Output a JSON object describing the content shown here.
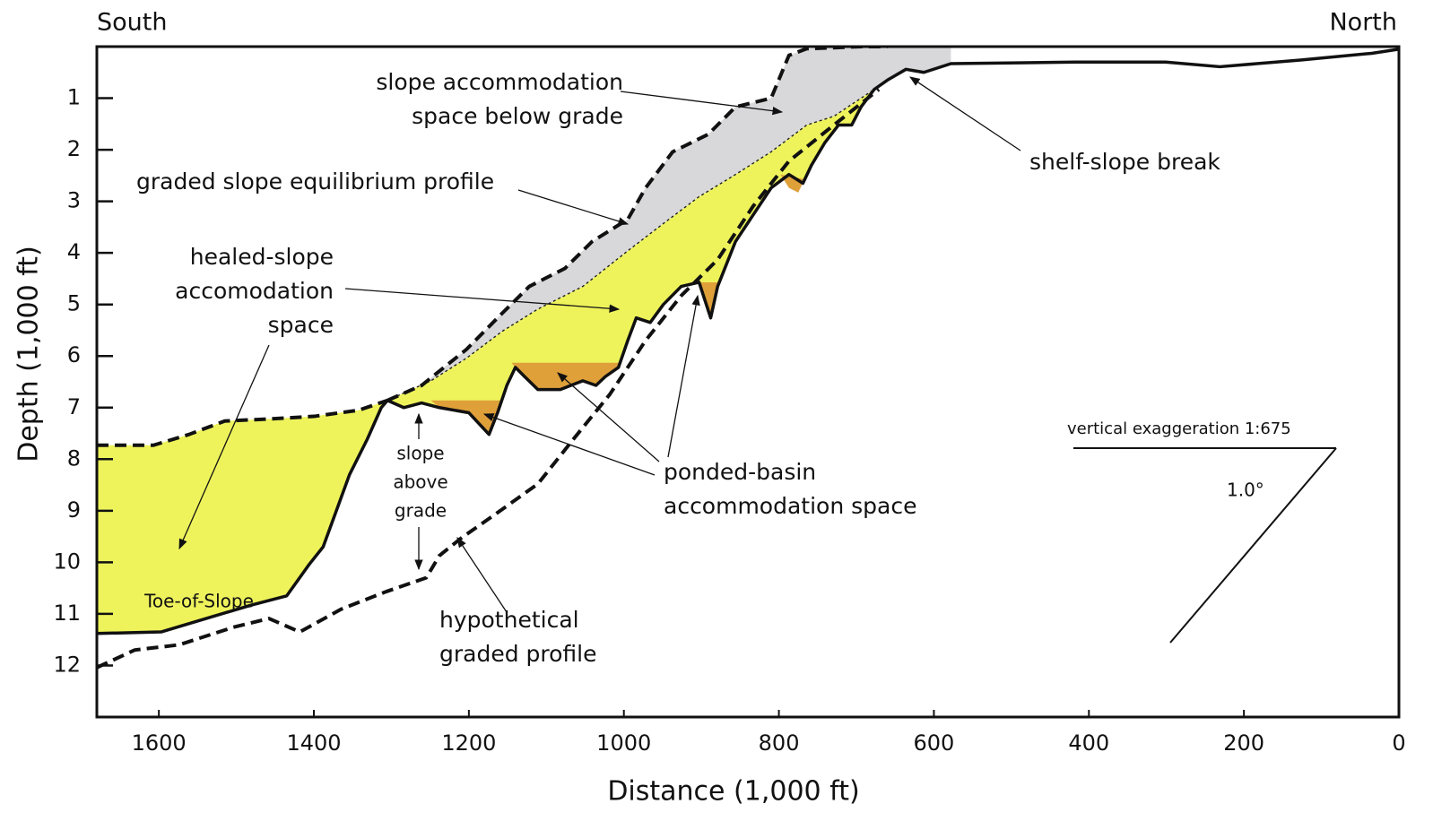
{
  "chart_data": {
    "type": "profile",
    "corner_labels": {
      "left": "South",
      "right": "North"
    },
    "x_label": "Distance (1,000 ft)",
    "y_label": "Depth (1,000 ft)",
    "xlim": [
      1680,
      0
    ],
    "ylim": [
      0,
      13
    ],
    "xticks": [
      1600,
      1400,
      1200,
      1000,
      800,
      600,
      400,
      200,
      0
    ],
    "yticks": [
      1,
      2,
      3,
      4,
      5,
      6,
      7,
      8,
      9,
      10,
      11,
      12
    ],
    "areas": [
      {
        "color": "#eef35c",
        "x": [
          1680,
          1607,
          1561,
          1515,
          1458,
          1400,
          1342,
          1305,
          1249,
          1203,
          1157,
          1111,
          1053,
          995,
          949,
          903,
          856,
          810,
          764,
          729,
          694,
          677,
          694,
          706,
          723,
          741,
          758,
          769,
          787,
          810,
          833,
          856,
          879,
          888,
          903,
          926,
          949,
          966,
          984,
          995,
          1007,
          1024,
          1036,
          1053,
          1082,
          1111,
          1128,
          1140,
          1151,
          1163,
          1174,
          1200,
          1238,
          1261,
          1284,
          1305,
          1313,
          1331,
          1354,
          1371,
          1388,
          1406,
          1435,
          1481,
          1539,
          1597,
          1680
        ],
        "y": [
          7.73,
          7.73,
          7.52,
          7.26,
          7.22,
          7.17,
          7.05,
          6.86,
          6.48,
          6.04,
          5.52,
          5.09,
          4.65,
          3.96,
          3.43,
          2.91,
          2.48,
          2.04,
          1.52,
          1.35,
          1.0,
          0.83,
          1.17,
          1.52,
          1.52,
          1.87,
          2.3,
          2.65,
          2.48,
          2.74,
          3.26,
          3.78,
          4.65,
          5.26,
          4.57,
          4.65,
          5.0,
          5.35,
          5.26,
          5.7,
          6.22,
          6.4,
          6.57,
          6.48,
          6.65,
          6.65,
          6.4,
          6.22,
          6.57,
          7.1,
          7.52,
          7.1,
          7.0,
          6.91,
          7.0,
          6.86,
          7.0,
          7.61,
          8.3,
          9.0,
          9.7,
          10.04,
          10.65,
          10.83,
          11.09,
          11.35,
          11.38
        ]
      },
      {
        "color": "#d8d8da",
        "x": [
          1305,
          1261,
          1203,
          1157,
          1122,
          1076,
          1041,
          995,
          972,
          937,
          891,
          856,
          810,
          787,
          764,
          694,
          660,
          578,
          578,
          613,
          636,
          660,
          677,
          694,
          729,
          764,
          810,
          856,
          903,
          949,
          995,
          1053,
          1111,
          1157,
          1203,
          1249
        ],
        "y": [
          6.86,
          6.57,
          5.87,
          5.17,
          4.65,
          4.3,
          3.78,
          3.35,
          2.74,
          2.04,
          1.7,
          1.17,
          1.0,
          0.17,
          0.04,
          0,
          0,
          0,
          0.33,
          0.5,
          0.44,
          0.65,
          0.83,
          1.0,
          1.35,
          1.52,
          2.04,
          2.48,
          2.91,
          3.43,
          3.96,
          4.65,
          5.09,
          5.52,
          6.04,
          6.48
        ]
      },
      {
        "color": "#dfa03a",
        "x": [
          1249,
          1238,
          1200,
          1174,
          1163,
          1157
        ],
        "y": [
          6.86,
          7.0,
          7.1,
          7.52,
          7.1,
          6.86
        ]
      },
      {
        "color": "#dfa03a",
        "x": [
          1145,
          1140,
          1128,
          1111,
          1082,
          1053,
          1036,
          1024,
          1003
        ],
        "y": [
          6.13,
          6.22,
          6.4,
          6.65,
          6.65,
          6.48,
          6.57,
          6.4,
          6.13
        ]
      },
      {
        "color": "#dfa03a",
        "x": [
          903,
          888,
          879,
          879
        ],
        "y": [
          4.57,
          5.26,
          4.65,
          4.57
        ]
      },
      {
        "color": "#dfa03a",
        "x": [
          798,
          787,
          775,
          767
        ],
        "y": [
          2.48,
          2.74,
          2.83,
          2.57
        ]
      }
    ],
    "series": [
      {
        "style": "dotted",
        "color": "#222222",
        "x": [
          1305,
          1249,
          1203,
          1157,
          1111,
          1053,
          995,
          949,
          903,
          856,
          810,
          764,
          729,
          694,
          677
        ],
        "y": [
          6.86,
          6.48,
          6.04,
          5.52,
          5.09,
          4.65,
          3.96,
          3.43,
          2.91,
          2.48,
          2.04,
          1.52,
          1.35,
          1.0,
          0.83
        ]
      },
      {
        "style": "dashed",
        "color": "#111111",
        "x": [
          1680,
          1607,
          1561,
          1515,
          1458,
          1400,
          1342,
          1305
        ],
        "y": [
          7.73,
          7.73,
          7.52,
          7.26,
          7.22,
          7.17,
          7.05,
          6.86
        ]
      },
      {
        "style": "dashed",
        "color": "#111111",
        "x": [
          1305,
          1261,
          1203,
          1157,
          1122,
          1076,
          1041,
          995,
          972,
          937,
          891,
          856,
          810,
          787,
          764,
          694,
          660
        ],
        "y": [
          6.86,
          6.57,
          5.87,
          5.17,
          4.65,
          4.3,
          3.78,
          3.35,
          2.74,
          2.04,
          1.7,
          1.17,
          1.0,
          0.17,
          0.04,
          0,
          0
        ]
      },
      {
        "style": "dashed",
        "color": "#111111",
        "x": [
          1680,
          1631,
          1574,
          1504,
          1458,
          1418,
          1365,
          1307,
          1255,
          1238,
          1209,
          1168,
          1111,
          1065,
          1018,
          972,
          926,
          879,
          833,
          787,
          729,
          671
        ],
        "y": [
          12.04,
          11.7,
          11.6,
          11.26,
          11.09,
          11.35,
          10.91,
          10.57,
          10.3,
          9.87,
          9.52,
          9.09,
          8.48,
          7.61,
          6.74,
          5.7,
          4.83,
          4.13,
          3.09,
          2.22,
          1.52,
          0.83
        ]
      },
      {
        "style": "solid",
        "color": "#111111",
        "x": [
          1680,
          1597,
          1539,
          1481,
          1435,
          1406,
          1388,
          1371,
          1354,
          1331,
          1313,
          1305,
          1284,
          1261,
          1238,
          1200,
          1174,
          1163,
          1151,
          1140,
          1128,
          1111,
          1082,
          1053,
          1036,
          1024,
          1007,
          995,
          984,
          966,
          949,
          926,
          903,
          888,
          879,
          856,
          833,
          810,
          787,
          769,
          758,
          741,
          723,
          706,
          694,
          677,
          660,
          636,
          613,
          578,
          417,
          301,
          231,
          127,
          35,
          0
        ],
        "y": [
          11.38,
          11.35,
          11.09,
          10.83,
          10.65,
          10.04,
          9.7,
          9.0,
          8.3,
          7.61,
          7.0,
          6.86,
          7.0,
          6.91,
          7.0,
          7.1,
          7.52,
          7.1,
          6.57,
          6.22,
          6.4,
          6.65,
          6.65,
          6.48,
          6.57,
          6.4,
          6.22,
          5.7,
          5.26,
          5.35,
          5.0,
          4.65,
          4.57,
          5.26,
          4.65,
          3.78,
          3.26,
          2.74,
          2.48,
          2.65,
          2.3,
          1.87,
          1.52,
          1.52,
          1.17,
          0.83,
          0.65,
          0.44,
          0.5,
          0.33,
          0.3,
          0.3,
          0.39,
          0.26,
          0.13,
          0.05
        ]
      }
    ],
    "annotations": [
      {
        "lines": [
          "slope accommodation",
          "space below grade"
        ]
      },
      {
        "lines": [
          "graded slope equilibrium profile"
        ]
      },
      {
        "lines": [
          "healed-slope",
          "accomodation",
          "space"
        ]
      },
      {
        "lines": [
          "shelf-slope break"
        ]
      },
      {
        "lines": [
          "slope",
          "above",
          "grade"
        ]
      },
      {
        "lines": [
          "ponded-basin",
          "accommodation space"
        ]
      },
      {
        "lines": [
          "hypothetical",
          "graded profile"
        ]
      },
      {
        "lines": [
          "Toe-of-Slope"
        ]
      }
    ],
    "scale_bar": {
      "label": "vertical exaggeration 1:675",
      "angle_label": "1.0°"
    }
  }
}
